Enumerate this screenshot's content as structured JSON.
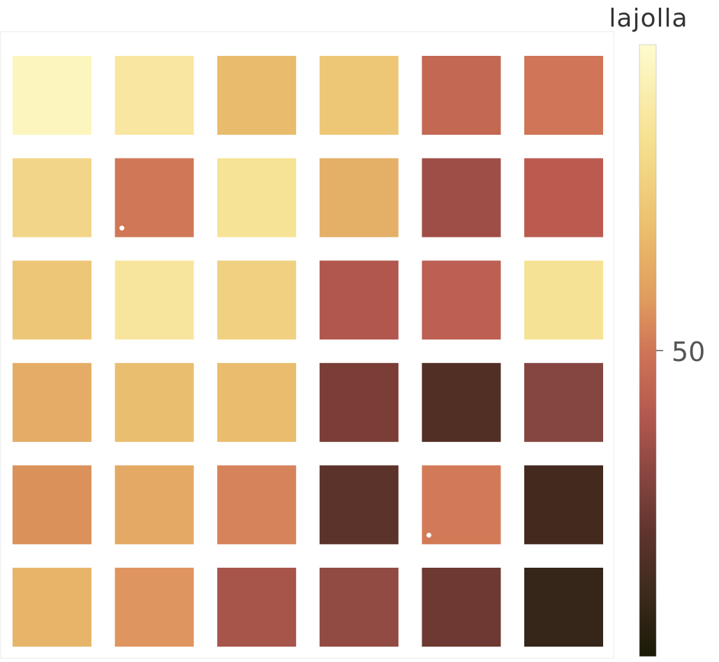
{
  "chart_data": {
    "type": "heatmap",
    "title": "",
    "colorbar": {
      "title": "lajolla",
      "tick_labels": [
        "50"
      ],
      "ticks": [
        50
      ],
      "range": [
        0,
        100
      ]
    },
    "rows": 6,
    "cols": 6,
    "values": [
      [
        97,
        88,
        72,
        76,
        42,
        45
      ],
      [
        82,
        45,
        86,
        68,
        33,
        40
      ],
      [
        76,
        86,
        80,
        38,
        41,
        86
      ],
      [
        68,
        73,
        73,
        27,
        15,
        30
      ],
      [
        58,
        68,
        54,
        18,
        46,
        10
      ],
      [
        70,
        60,
        36,
        32,
        22,
        7
      ]
    ],
    "colors": [
      [
        "#fcf5bd",
        "#f9e6a0",
        "#e9bb6c",
        "#edc776",
        "#c36852",
        "#d07557"
      ],
      [
        "#f2d589",
        "#d07757",
        "#f7e395",
        "#e4af67",
        "#9f4e47",
        "#bb5b50"
      ],
      [
        "#edc678",
        "#f8e59d",
        "#f0d182",
        "#b1574d",
        "#bd5f53",
        "#f5e294"
      ],
      [
        "#e4ac66",
        "#eabe6f",
        "#e9bc6e",
        "#7a3e37",
        "#512f25",
        "#854540"
      ],
      [
        "#db925a",
        "#e4a964",
        "#d6835b",
        "#5c332b",
        "#d27a57",
        "#43291e"
      ],
      [
        "#e7b56a",
        "#df955f",
        "#a7544b",
        "#914b43",
        "#6d3932",
        "#362619"
      ]
    ],
    "markers": [
      {
        "row": 1,
        "col": 1
      },
      {
        "row": 4,
        "col": 4
      }
    ]
  }
}
